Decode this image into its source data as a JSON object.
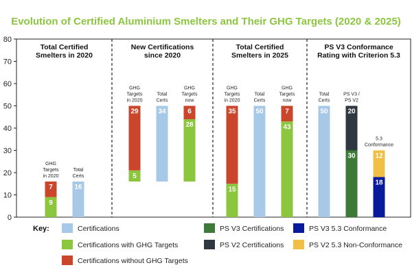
{
  "chart_data": {
    "type": "bar",
    "title": "Evolution of Certified Aluminium Smelters and Their GHG Targets (2020 & 2025)",
    "title_color": "#8cc63f",
    "ylim": [
      0,
      80
    ],
    "yticks": [
      0,
      10,
      20,
      30,
      40,
      50,
      60,
      70,
      80
    ],
    "grid": false,
    "colors": {
      "certifications": "#a7c9e7",
      "with_ghg": "#8cc63f",
      "without_ghg": "#c9462c",
      "ps_v3": "#3d7a3a",
      "ps_v2": "#2f3840",
      "v3_53_conf": "#0a1a9c",
      "v2_53_nonconf": "#f0bf45"
    },
    "groups": [
      {
        "title": [
          "Total Certified",
          "Smelters in 2020"
        ],
        "bars": [
          {
            "label": [
              "GHG",
              "Targets",
              "in 2020"
            ],
            "segments": [
              {
                "series": "with_ghg",
                "value": 9,
                "label": "9"
              },
              {
                "series": "without_ghg",
                "value": 7,
                "label": "7"
              }
            ]
          },
          {
            "label": [
              "Total",
              "Certs"
            ],
            "segments": [
              {
                "series": "certifications",
                "value": 16,
                "label": "16"
              }
            ]
          }
        ]
      },
      {
        "title": [
          "New Certifications",
          "since 2020"
        ],
        "bars": [
          {
            "label": [
              "GHG",
              "Targets",
              "in 2020"
            ],
            "base": 16,
            "segments": [
              {
                "series": "with_ghg",
                "value": 5,
                "label": "5"
              },
              {
                "series": "without_ghg",
                "value": 29,
                "label": "29"
              }
            ]
          },
          {
            "label": [
              "Total",
              "Certs"
            ],
            "base": 16,
            "segments": [
              {
                "series": "certifications",
                "value": 34,
                "label": "34"
              }
            ]
          },
          {
            "label": [
              "GHG",
              "Targets",
              "now"
            ],
            "base": 16,
            "segments": [
              {
                "series": "with_ghg",
                "value": 28,
                "label": "28"
              },
              {
                "series": "without_ghg",
                "value": 6,
                "label": "6"
              }
            ]
          }
        ]
      },
      {
        "title": [
          "Total Certified",
          "Smelters in 2025"
        ],
        "bars": [
          {
            "label": [
              "GHG",
              "Targets",
              "in 2020"
            ],
            "segments": [
              {
                "series": "with_ghg",
                "value": 15,
                "label": "15"
              },
              {
                "series": "without_ghg",
                "value": 35,
                "label": "35"
              }
            ]
          },
          {
            "label": [
              "Total",
              "Certs"
            ],
            "segments": [
              {
                "series": "certifications",
                "value": 50,
                "label": "50"
              }
            ]
          },
          {
            "label": [
              "GHG",
              "Targets",
              "now"
            ],
            "segments": [
              {
                "series": "with_ghg",
                "value": 43,
                "label": "43"
              },
              {
                "series": "without_ghg",
                "value": 7,
                "label": "7"
              }
            ]
          }
        ]
      },
      {
        "title": [
          "PS V3 Conformance",
          "Rating with Criterion 5.3"
        ],
        "bars": [
          {
            "label": [
              "Total",
              "Certs"
            ],
            "segments": [
              {
                "series": "certifications",
                "value": 50,
                "label": "50"
              }
            ]
          },
          {
            "label": [
              "PS V3 /",
              "PS V2"
            ],
            "segments": [
              {
                "series": "ps_v3",
                "value": 30,
                "label": "30"
              },
              {
                "series": "ps_v2",
                "value": 20,
                "label": "20"
              }
            ]
          },
          {
            "label": [
              "5.3",
              "Conformance"
            ],
            "segments": [
              {
                "series": "v3_53_conf",
                "value": 18,
                "label": "18"
              },
              {
                "series": "v2_53_nonconf",
                "value": 12,
                "label": "12"
              }
            ]
          }
        ]
      }
    ],
    "legend": {
      "key_label": "Key:",
      "items": [
        {
          "series": "certifications",
          "label": "Certifications"
        },
        {
          "series": "with_ghg",
          "label": "Certifications with GHG Targets"
        },
        {
          "series": "without_ghg",
          "label": "Certifications without GHG Targets"
        },
        {
          "series": "ps_v3",
          "label": "PS V3 Certifications"
        },
        {
          "series": "ps_v2",
          "label": "PS V2 Certifications"
        },
        {
          "series": "v3_53_conf",
          "label": "PS V3 5.3 Conformance"
        },
        {
          "series": "v2_53_nonconf",
          "label": "PS V2 5.3 Non-Conformance"
        }
      ]
    }
  }
}
